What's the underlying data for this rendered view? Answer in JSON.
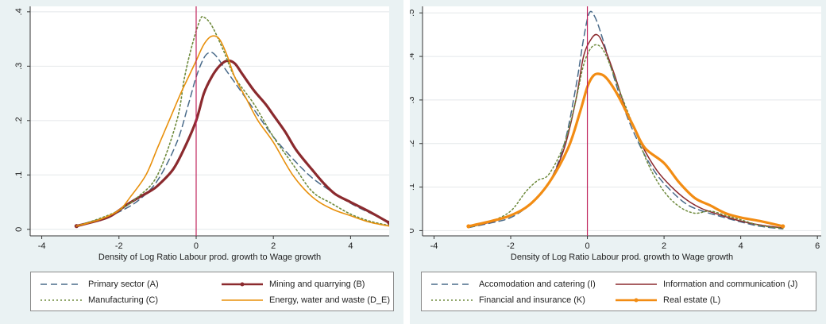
{
  "chart_data": [
    {
      "type": "line",
      "xlabel": "Density of Log Ratio Labour prod. growth to Wage growth",
      "ylabel": "",
      "xlim": [
        -4.3,
        5.0
      ],
      "ylim": [
        -0.012,
        0.41
      ],
      "xticks": [
        -4,
        -2,
        0,
        2,
        4
      ],
      "xtick_labels": [
        "-4",
        "-2",
        "0",
        "2",
        "4"
      ],
      "yticks": [
        0,
        0.1,
        0.2,
        0.3,
        0.4
      ],
      "ytick_labels": [
        "0",
        ".1",
        ".2",
        ".3",
        ".4"
      ],
      "vline_x": 0,
      "grid": true,
      "legend_position": "bottom",
      "series": [
        {
          "name": "Primary sector (A)",
          "color": "#4a6b8a",
          "dash": "8,5",
          "width": 1.5,
          "marker": false,
          "points": [
            [
              -3.1,
              0.005
            ],
            [
              -2.5,
              0.017
            ],
            [
              -2,
              0.032
            ],
            [
              -1.5,
              0.053
            ],
            [
              -1,
              0.09
            ],
            [
              -0.5,
              0.16
            ],
            [
              -0.2,
              0.23
            ],
            [
              0,
              0.28
            ],
            [
              0.2,
              0.315
            ],
            [
              0.35,
              0.325
            ],
            [
              0.5,
              0.32
            ],
            [
              0.8,
              0.29
            ],
            [
              1.2,
              0.25
            ],
            [
              1.6,
              0.21
            ],
            [
              2,
              0.17
            ],
            [
              2.5,
              0.13
            ],
            [
              3,
              0.095
            ],
            [
              3.5,
              0.07
            ],
            [
              4,
              0.048
            ],
            [
              4.5,
              0.03
            ],
            [
              5,
              0.014
            ]
          ]
        },
        {
          "name": "Mining and quarrying (B)",
          "color": "#8b2a2e",
          "dash": "",
          "width": 3.2,
          "marker": true,
          "points": [
            [
              -3.1,
              0.006
            ],
            [
              -2.5,
              0.017
            ],
            [
              -2.2,
              0.025
            ],
            [
              -1.8,
              0.045
            ],
            [
              -1.5,
              0.058
            ],
            [
              -1.2,
              0.07
            ],
            [
              -1,
              0.08
            ],
            [
              -0.6,
              0.11
            ],
            [
              -0.3,
              0.15
            ],
            [
              0,
              0.2
            ],
            [
              0.2,
              0.25
            ],
            [
              0.4,
              0.28
            ],
            [
              0.6,
              0.3
            ],
            [
              0.8,
              0.31
            ],
            [
              1,
              0.305
            ],
            [
              1.2,
              0.285
            ],
            [
              1.5,
              0.255
            ],
            [
              1.8,
              0.23
            ],
            [
              2,
              0.21
            ],
            [
              2.3,
              0.18
            ],
            [
              2.6,
              0.145
            ],
            [
              3,
              0.11
            ],
            [
              3.3,
              0.085
            ],
            [
              3.6,
              0.065
            ],
            [
              4,
              0.05
            ],
            [
              4.5,
              0.032
            ],
            [
              5,
              0.012
            ]
          ]
        },
        {
          "name": "Manufacturing (C)",
          "color": "#6e8a3c",
          "dash": "2,3",
          "width": 1.6,
          "marker": false,
          "points": [
            [
              -3.1,
              0.006
            ],
            [
              -2.5,
              0.02
            ],
            [
              -2,
              0.035
            ],
            [
              -1.5,
              0.06
            ],
            [
              -1,
              0.1
            ],
            [
              -0.5,
              0.2
            ],
            [
              -0.3,
              0.28
            ],
            [
              -0.1,
              0.34
            ],
            [
              0.1,
              0.385
            ],
            [
              0.2,
              0.39
            ],
            [
              0.4,
              0.375
            ],
            [
              0.7,
              0.33
            ],
            [
              1,
              0.28
            ],
            [
              1.5,
              0.23
            ],
            [
              2,
              0.17
            ],
            [
              2.5,
              0.12
            ],
            [
              3,
              0.07
            ],
            [
              3.5,
              0.048
            ],
            [
              4,
              0.028
            ],
            [
              4.5,
              0.015
            ],
            [
              5,
              0.007
            ]
          ]
        },
        {
          "name": "Energy, water and waste (D_E)",
          "color": "#e8900c",
          "dash": "",
          "width": 1.6,
          "marker": false,
          "points": [
            [
              -3.1,
              0.006
            ],
            [
              -2.5,
              0.018
            ],
            [
              -2,
              0.035
            ],
            [
              -1.7,
              0.06
            ],
            [
              -1.3,
              0.1
            ],
            [
              -1,
              0.15
            ],
            [
              -0.7,
              0.2
            ],
            [
              -0.4,
              0.25
            ],
            [
              -0.2,
              0.28
            ],
            [
              0,
              0.31
            ],
            [
              0.2,
              0.34
            ],
            [
              0.4,
              0.355
            ],
            [
              0.6,
              0.35
            ],
            [
              0.8,
              0.32
            ],
            [
              1,
              0.28
            ],
            [
              1.3,
              0.24
            ],
            [
              1.6,
              0.2
            ],
            [
              2,
              0.16
            ],
            [
              2.5,
              0.1
            ],
            [
              3,
              0.06
            ],
            [
              3.5,
              0.038
            ],
            [
              4,
              0.025
            ],
            [
              4.5,
              0.013
            ],
            [
              5,
              0.006
            ]
          ]
        }
      ]
    },
    {
      "type": "line",
      "xlabel": "Density of Log Ratio Labour prod. growth to Wage growth",
      "ylabel": "",
      "xlim": [
        -4.3,
        6.1
      ],
      "ylim": [
        -0.012,
        0.515
      ],
      "xticks": [
        -4,
        -2,
        0,
        2,
        4,
        6
      ],
      "xtick_labels": [
        "-4",
        "-2",
        "0",
        "2",
        "4",
        "6"
      ],
      "yticks": [
        0,
        0.1,
        0.2,
        0.3,
        0.4,
        0.5
      ],
      "ytick_labels": [
        "0",
        ".1",
        ".2",
        ".3",
        ".4",
        ".5"
      ],
      "vline_x": 0,
      "grid": true,
      "legend_position": "bottom",
      "series": [
        {
          "name": "Accomodation and catering (I)",
          "color": "#4a6b8a",
          "dash": "8,5",
          "width": 1.5,
          "marker": false,
          "points": [
            [
              -3.1,
              0.007
            ],
            [
              -2.5,
              0.018
            ],
            [
              -2,
              0.03
            ],
            [
              -1.5,
              0.06
            ],
            [
              -1,
              0.11
            ],
            [
              -0.6,
              0.2
            ],
            [
              -0.3,
              0.33
            ],
            [
              -0.1,
              0.44
            ],
            [
              0.05,
              0.5
            ],
            [
              0.2,
              0.49
            ],
            [
              0.4,
              0.44
            ],
            [
              0.7,
              0.35
            ],
            [
              1,
              0.27
            ],
            [
              1.4,
              0.19
            ],
            [
              1.8,
              0.13
            ],
            [
              2.2,
              0.09
            ],
            [
              2.6,
              0.06
            ],
            [
              3,
              0.045
            ],
            [
              3.5,
              0.032
            ],
            [
              4,
              0.02
            ],
            [
              4.5,
              0.01
            ],
            [
              5.1,
              0.004
            ]
          ]
        },
        {
          "name": "Information and communication (J)",
          "color": "#8b2a2e",
          "dash": "",
          "width": 1.5,
          "marker": false,
          "points": [
            [
              -3.1,
              0.008
            ],
            [
              -2.5,
              0.02
            ],
            [
              -2,
              0.035
            ],
            [
              -1.5,
              0.06
            ],
            [
              -1,
              0.11
            ],
            [
              -0.6,
              0.19
            ],
            [
              -0.3,
              0.3
            ],
            [
              -0.1,
              0.4
            ],
            [
              0.1,
              0.44
            ],
            [
              0.25,
              0.45
            ],
            [
              0.4,
              0.43
            ],
            [
              0.7,
              0.36
            ],
            [
              1,
              0.28
            ],
            [
              1.4,
              0.2
            ],
            [
              1.8,
              0.14
            ],
            [
              2.2,
              0.1
            ],
            [
              2.6,
              0.07
            ],
            [
              3,
              0.05
            ],
            [
              3.5,
              0.035
            ],
            [
              4,
              0.022
            ],
            [
              4.5,
              0.013
            ],
            [
              5.1,
              0.006
            ]
          ]
        },
        {
          "name": "Financial and insurance (K)",
          "color": "#6e8a3c",
          "dash": "2,3",
          "width": 1.5,
          "marker": false,
          "points": [
            [
              -3.1,
              0.007
            ],
            [
              -2.5,
              0.022
            ],
            [
              -2,
              0.045
            ],
            [
              -1.6,
              0.09
            ],
            [
              -1.3,
              0.115
            ],
            [
              -1,
              0.13
            ],
            [
              -0.6,
              0.2
            ],
            [
              -0.3,
              0.3
            ],
            [
              -0.1,
              0.38
            ],
            [
              0.1,
              0.42
            ],
            [
              0.3,
              0.425
            ],
            [
              0.5,
              0.4
            ],
            [
              0.8,
              0.33
            ],
            [
              1.2,
              0.24
            ],
            [
              1.6,
              0.15
            ],
            [
              2,
              0.09
            ],
            [
              2.4,
              0.055
            ],
            [
              2.8,
              0.04
            ],
            [
              3.2,
              0.045
            ],
            [
              3.6,
              0.035
            ],
            [
              4,
              0.025
            ],
            [
              4.5,
              0.012
            ],
            [
              5.1,
              0.005
            ]
          ]
        },
        {
          "name": "Real estate (L)",
          "color": "#f28c13",
          "dash": "",
          "width": 3.2,
          "marker": true,
          "points": [
            [
              -3.1,
              0.01
            ],
            [
              -2.5,
              0.022
            ],
            [
              -2,
              0.035
            ],
            [
              -1.5,
              0.06
            ],
            [
              -1,
              0.11
            ],
            [
              -0.5,
              0.19
            ],
            [
              -0.2,
              0.27
            ],
            [
              0,
              0.33
            ],
            [
              0.15,
              0.355
            ],
            [
              0.3,
              0.36
            ],
            [
              0.5,
              0.35
            ],
            [
              0.8,
              0.31
            ],
            [
              1.2,
              0.24
            ],
            [
              1.5,
              0.19
            ],
            [
              2,
              0.155
            ],
            [
              2.4,
              0.11
            ],
            [
              2.8,
              0.075
            ],
            [
              3.2,
              0.058
            ],
            [
              3.6,
              0.04
            ],
            [
              4,
              0.03
            ],
            [
              4.5,
              0.022
            ],
            [
              5.1,
              0.01
            ]
          ]
        }
      ]
    }
  ]
}
